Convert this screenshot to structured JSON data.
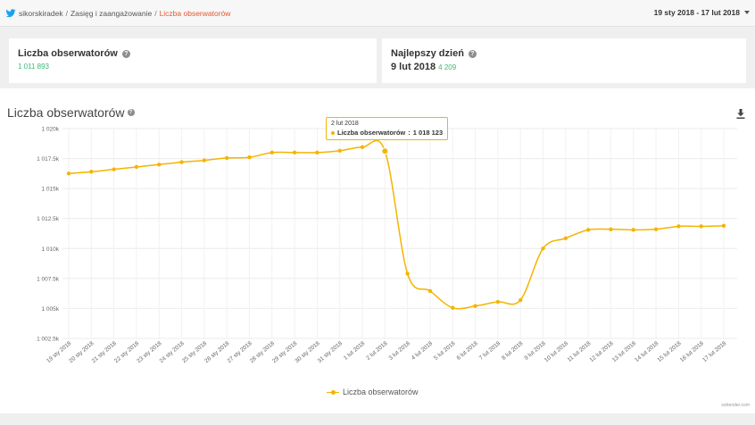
{
  "topbar": {
    "breadcrumbs": [
      "sikorskiradek",
      "Zasięg i zaangażowanie",
      "Liczba obserwatorów"
    ],
    "date_range": "19 sty 2018 - 17 lut 2018"
  },
  "stats": {
    "followers": {
      "title": "Liczba obserwatorów",
      "value": "1 011 893"
    },
    "best_day": {
      "title": "Najlepszy dzień",
      "date": "9 lut 2018",
      "value": "4 209"
    }
  },
  "chart": {
    "title": "Liczba obserwatorów",
    "credit": "sotrender.com",
    "tooltip": {
      "date": "2 lut 2018",
      "series": "Liczba obserwatorów",
      "value": "1 018 123"
    },
    "colors": {
      "line": "#f4b400",
      "grid": "#ebebeb",
      "value_green": "#3cb878",
      "accent_red": "#e8562a",
      "twitter_blue": "#1da1f2"
    }
  },
  "chart_data": {
    "type": "line",
    "title": "Liczba obserwatorów",
    "xlabel": "",
    "ylabel": "",
    "ylim": [
      1002500,
      1020000
    ],
    "yticks": [
      1002500,
      1005000,
      1007500,
      1010000,
      1012500,
      1015000,
      1017500,
      1020000
    ],
    "ytick_labels": [
      "1 002.5k",
      "1 005k",
      "1 007.5k",
      "1 010k",
      "1 012.5k",
      "1 015k",
      "1 017.5k",
      "1 020k"
    ],
    "grid": true,
    "legend": "bottom",
    "categories": [
      "19 sty 2018",
      "20 sty 2018",
      "21 sty 2018",
      "22 sty 2018",
      "23 sty 2018",
      "24 sty 2018",
      "25 sty 2018",
      "26 sty 2018",
      "27 sty 2018",
      "28 sty 2018",
      "29 sty 2018",
      "30 sty 2018",
      "31 sty 2018",
      "1 lut 2018",
      "2 lut 2018",
      "3 lut 2018",
      "4 lut 2018",
      "5 lut 2018",
      "6 lut 2018",
      "7 lut 2018",
      "8 lut 2018",
      "9 lut 2018",
      "10 lut 2018",
      "11 lut 2018",
      "12 lut 2018",
      "13 lut 2018",
      "14 lut 2018",
      "15 lut 2018",
      "16 lut 2018",
      "17 lut 2018"
    ],
    "series": [
      {
        "name": "Liczba obserwatorów",
        "values": [
          1016250,
          1016400,
          1016600,
          1016800,
          1017000,
          1017200,
          1017350,
          1017550,
          1017600,
          1018000,
          1018000,
          1018000,
          1018150,
          1018450,
          1018123,
          1007900,
          1006450,
          1005050,
          1005200,
          1005550,
          1005700,
          1010000,
          1010850,
          1011550,
          1011600,
          1011550,
          1011600,
          1011850,
          1011850,
          1011893
        ]
      }
    ]
  }
}
